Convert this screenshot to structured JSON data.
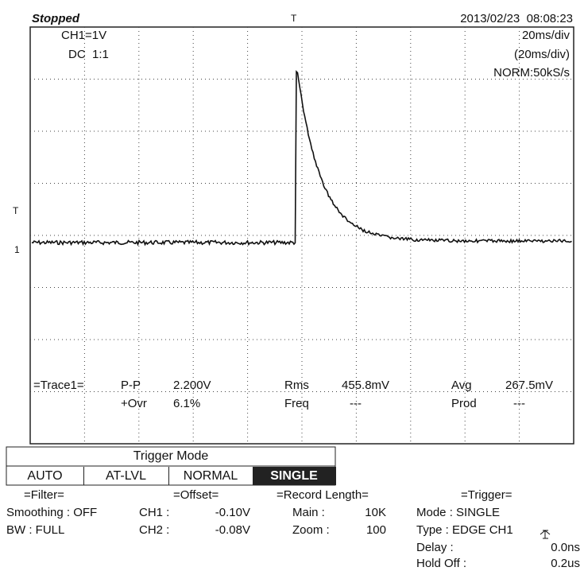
{
  "status": "Stopped",
  "trigger_marker": "T",
  "datetime": "2013/02/23  08:08:23",
  "channel": {
    "scale": "CH1=1V",
    "coupling": "DC  1:1"
  },
  "timebase": {
    "div": "20ms/div",
    "div_actual": "(20ms/div)",
    "mode": "NORM:50kS/s"
  },
  "markers": {
    "trigger_level": "T",
    "ch1_ground": "1"
  },
  "measurements": {
    "source": "=Trace1=",
    "items": [
      {
        "label": "P-P",
        "value": "2.200V"
      },
      {
        "label": "Rms",
        "value": "455.8mV"
      },
      {
        "label": "Avg",
        "value": "267.5mV"
      },
      {
        "label": "+Ovr",
        "value": "6.1%"
      },
      {
        "label": "Freq",
        "value": "---"
      },
      {
        "label": "Prod",
        "value": "---"
      }
    ]
  },
  "trigger_mode": {
    "title": "Trigger Mode",
    "options": [
      "AUTO",
      "AT-LVL",
      "NORMAL",
      "SINGLE"
    ],
    "selected": "SINGLE"
  },
  "settings": {
    "filter": {
      "title": "=Filter=",
      "smoothing": "Smoothing : OFF",
      "bw": "BW : FULL"
    },
    "offset": {
      "title": "=Offset=",
      "ch1_label": "CH1 :",
      "ch1_value": "-0.10V",
      "ch2_label": "CH2 :",
      "ch2_value": "-0.08V"
    },
    "record": {
      "title": "=Record Length=",
      "main_label": "Main :",
      "main_value": "10K",
      "zoom_label": "Zoom :",
      "zoom_value": "100"
    },
    "trigger": {
      "title": "=Trigger=",
      "mode": "Mode : SINGLE",
      "type": "Type : EDGE CH1",
      "delay_label": "Delay :",
      "delay_value": "0.0ns",
      "holdoff_label": "Hold Off :",
      "holdoff_value": "0.2us"
    }
  }
}
